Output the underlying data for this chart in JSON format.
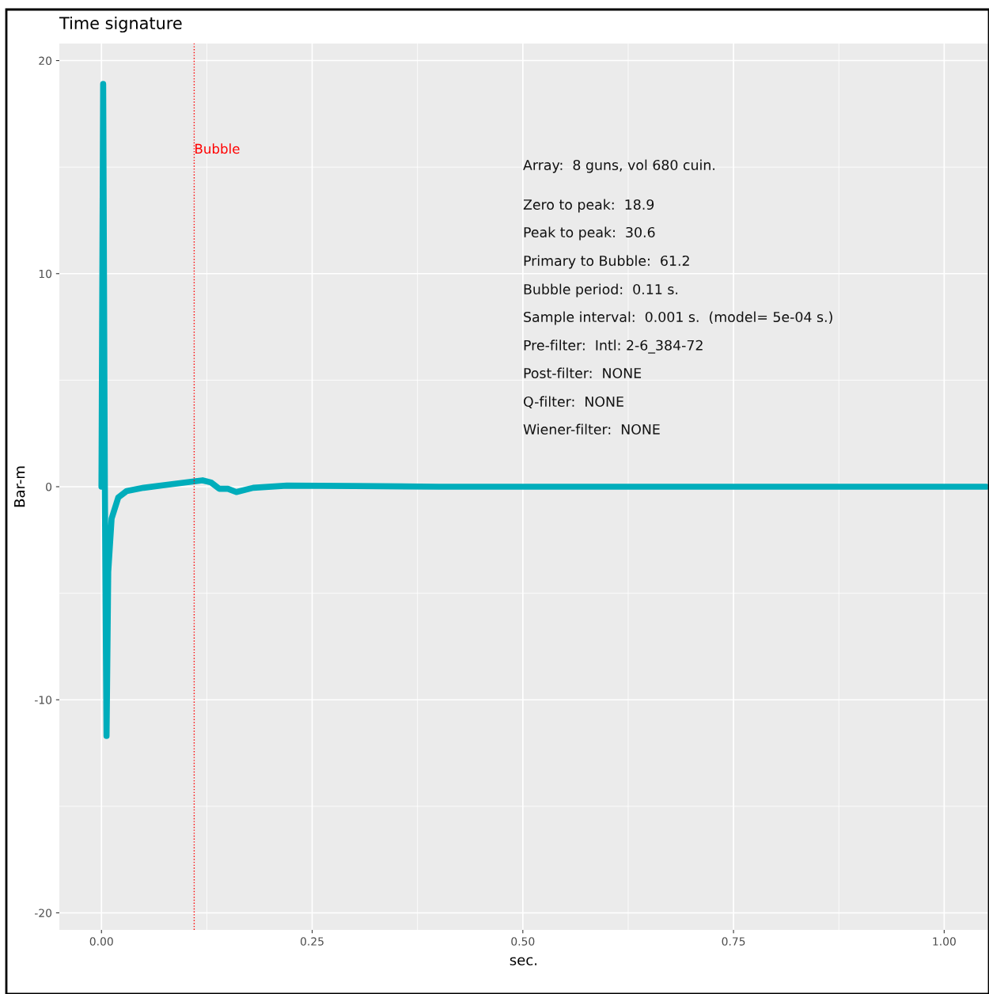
{
  "chart_data": {
    "type": "line",
    "title": "Time signature",
    "xlabel": "sec.",
    "ylabel": "Bar-m",
    "series": [
      {
        "color": "#00adbb",
        "x": [
          0,
          0.002,
          0.004,
          0.006,
          0.008,
          0.012,
          0.02,
          0.03,
          0.05,
          0.08,
          0.11,
          0.12,
          0.13,
          0.14,
          0.15,
          0.16,
          0.18,
          0.22,
          0.3,
          0.4,
          0.6,
          0.8,
          1.0,
          1.05
        ],
        "values": [
          0,
          18.9,
          0,
          -11.7,
          -4,
          -1.5,
          -0.5,
          -0.2,
          -0.05,
          0.1,
          0.25,
          0.3,
          0.2,
          -0.1,
          -0.1,
          -0.25,
          -0.05,
          0.05,
          0.03,
          0,
          0,
          0,
          0,
          0
        ]
      }
    ],
    "xlim": [
      -0.05,
      1.052
    ],
    "xticks": [
      {
        "value": 0,
        "label": "0.00"
      },
      {
        "value": 0.25,
        "label": "0.25"
      },
      {
        "value": 0.5,
        "label": "0.50"
      },
      {
        "value": 0.75,
        "label": "0.75"
      },
      {
        "value": 1,
        "label": "1.00"
      }
    ],
    "ylim": [
      -20.8,
      20.8
    ],
    "yticks": [
      -20,
      -10,
      0,
      10,
      20
    ],
    "ref_lines": [
      {
        "axis": "x",
        "value": 0.11,
        "label": "Bubble",
        "color": "#ff0000",
        "line_style": "dotted"
      }
    ],
    "annotations": [
      "Array:  8 guns, vol 680 cuin.",
      "Zero to peak:  18.9",
      "Peak to peak:  30.6",
      "Primary to Bubble:  61.2",
      "Bubble period:  0.11 s.",
      "Sample interval:  0.001 s.  (model= 5e-04 s.)",
      "Pre-filter:  Intl: 2-6_384-72",
      "Post-filter:  NONE",
      "Q-filter:  NONE",
      "Wiener-filter:  NONE"
    ],
    "grid": true,
    "legend": false
  }
}
